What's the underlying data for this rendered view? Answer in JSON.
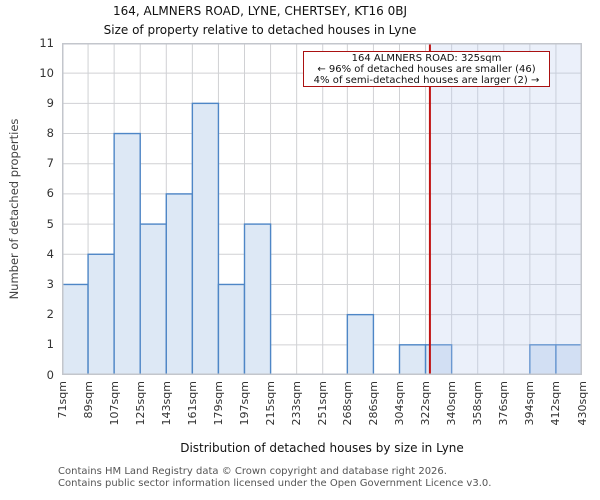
{
  "header": {
    "title": "164, ALMNERS ROAD, LYNE, CHERTSEY, KT16 0BJ",
    "subtitle": "Size of property relative to detached houses in Lyne"
  },
  "annotation": {
    "line1": "164 ALMNERS ROAD: 325sqm",
    "line2": "← 96% of detached houses are smaller (46)",
    "line3": "4% of semi-detached houses are larger (2) →"
  },
  "footer": {
    "line1": "Contains HM Land Registry data © Crown copyright and database right 2026.",
    "line2": "Contains public sector information licensed under the Open Government Licence v3.0."
  },
  "chart_data": {
    "type": "bar",
    "title": "164, ALMNERS ROAD, LYNE, CHERTSEY, KT16 0BJ",
    "subtitle": "Size of property relative to detached houses in Lyne",
    "xlabel": "Distribution of detached houses by size in Lyne",
    "ylabel": "Number of detached properties",
    "bin_edges_sqm": [
      71,
      89,
      107,
      125,
      143,
      161,
      179,
      197,
      215,
      233,
      251,
      268,
      286,
      304,
      322,
      340,
      358,
      376,
      394,
      412,
      430
    ],
    "x_tick_labels": [
      "71sqm",
      "89sqm",
      "107sqm",
      "125sqm",
      "143sqm",
      "161sqm",
      "179sqm",
      "197sqm",
      "215sqm",
      "233sqm",
      "251sqm",
      "268sqm",
      "286sqm",
      "304sqm",
      "322sqm",
      "340sqm",
      "358sqm",
      "376sqm",
      "394sqm",
      "412sqm",
      "430sqm"
    ],
    "values": [
      3,
      4,
      8,
      5,
      6,
      9,
      3,
      5,
      0,
      0,
      0,
      2,
      0,
      1,
      1,
      0,
      0,
      0,
      1,
      1
    ],
    "ylim": [
      0,
      11
    ],
    "yticks": [
      0,
      1,
      2,
      3,
      4,
      5,
      6,
      7,
      8,
      9,
      10,
      11
    ],
    "grid": true,
    "legend": "none",
    "marker_line": {
      "x_sqm": 325,
      "color": "#c01212"
    },
    "shaded_region": {
      "from_sqm": 325,
      "to_sqm": 430
    },
    "colors": {
      "bar_fill": "#dde8f5",
      "bar_edge": "#4e86c6",
      "grid": "#d0d1d4",
      "frame": "#c3c6cc",
      "shade": "rgba(183,202,237,0.28)",
      "annotation_border": "#aa1111"
    }
  }
}
